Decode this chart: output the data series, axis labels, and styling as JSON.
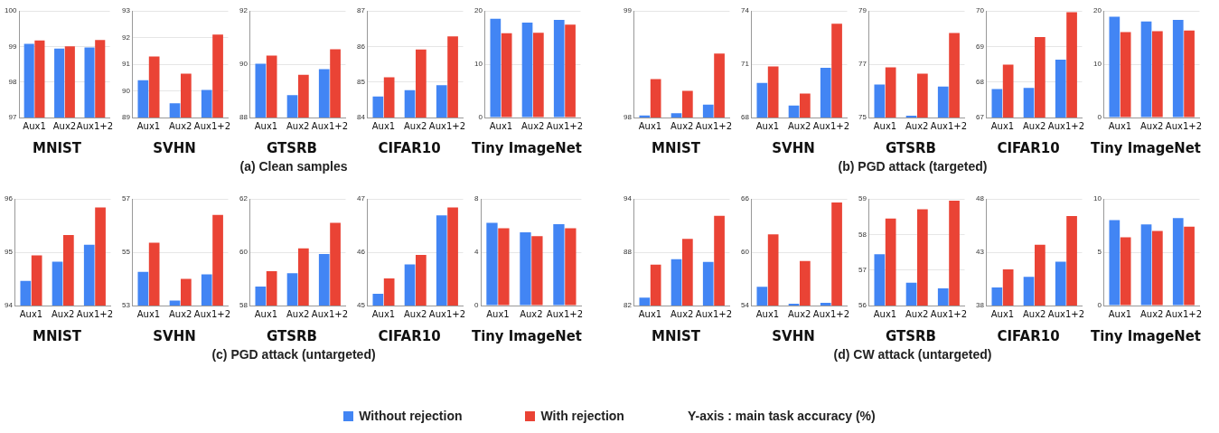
{
  "chart_data": [
    {
      "type": "bar",
      "title": "MNIST",
      "categories": [
        "Aux1",
        "Aux2",
        "Aux1+2"
      ],
      "ylim": [
        97,
        100
      ],
      "yticks": [
        97,
        98,
        99,
        100
      ],
      "grid": "y",
      "legend": "bottom",
      "series": [
        {
          "name": "Without rejection",
          "color": "#4285f4",
          "values": [
            99.07,
            98.94,
            98.97
          ]
        },
        {
          "name": "With rejection",
          "color": "#ea4335",
          "values": [
            99.17,
            99.0,
            99.18
          ]
        }
      ]
    },
    {
      "type": "bar",
      "title": "SVHN",
      "categories": [
        "Aux1",
        "Aux2",
        "Aux1+2"
      ],
      "ylim": [
        89,
        93
      ],
      "yticks": [
        89,
        90,
        91,
        92,
        93
      ],
      "grid": "y",
      "series": [
        {
          "color": "#4285f4",
          "values": [
            90.4,
            89.53,
            90.03
          ]
        },
        {
          "color": "#ea4335",
          "values": [
            91.29,
            90.64,
            92.11
          ]
        }
      ]
    },
    {
      "type": "bar",
      "title": "GTSRB",
      "categories": [
        "Aux1",
        "Aux2",
        "Aux1+2"
      ],
      "ylim": [
        88,
        92
      ],
      "yticks": [
        88,
        90,
        92
      ],
      "grid": "y",
      "annotations": [
        "(a) Clean samples"
      ],
      "series": [
        {
          "color": "#4285f4",
          "values": [
            90.02,
            88.84,
            89.81
          ]
        },
        {
          "color": "#ea4335",
          "values": [
            90.32,
            89.6,
            90.56
          ]
        }
      ]
    },
    {
      "type": "bar",
      "title": "CIFAR10",
      "categories": [
        "Aux1",
        "Aux2",
        "Aux1+2"
      ],
      "ylim": [
        84,
        87
      ],
      "yticks": [
        84,
        85,
        86,
        87
      ],
      "grid": "y",
      "series": [
        {
          "color": "#4285f4",
          "values": [
            84.59,
            84.77,
            84.91
          ]
        },
        {
          "color": "#ea4335",
          "values": [
            85.13,
            85.91,
            86.28
          ]
        }
      ]
    },
    {
      "type": "bar",
      "title": "Tiny ImageNet",
      "categories": [
        "Aux1",
        "Aux2",
        "Aux1+2"
      ],
      "ylim": [
        0,
        20
      ],
      "yticks": [
        0,
        10,
        20
      ],
      "grid": "y",
      "series": [
        {
          "color": "#4285f4",
          "values": [
            18.5,
            17.8,
            18.3
          ]
        },
        {
          "color": "#ea4335",
          "values": [
            15.8,
            15.9,
            17.4
          ]
        }
      ]
    },
    {
      "type": "bar",
      "title": "MNIST",
      "categories": [
        "Aux1",
        "Aux2",
        "Aux1+2"
      ],
      "ylim": [
        98,
        99
      ],
      "yticks": [
        98,
        99
      ],
      "grid": "y",
      "series": [
        {
          "color": "#4285f4",
          "values": [
            98.02,
            98.04,
            98.12
          ]
        },
        {
          "color": "#ea4335",
          "values": [
            98.36,
            98.25,
            98.6
          ]
        }
      ]
    },
    {
      "type": "bar",
      "title": "SVHN",
      "categories": [
        "Aux1",
        "Aux2",
        "Aux1+2"
      ],
      "ylim": [
        68,
        74
      ],
      "yticks": [
        68,
        71,
        74
      ],
      "grid": "y",
      "series": [
        {
          "color": "#4285f4",
          "values": [
            69.94,
            68.68,
            70.8
          ]
        },
        {
          "color": "#ea4335",
          "values": [
            70.87,
            69.35,
            73.28
          ]
        }
      ]
    },
    {
      "type": "bar",
      "title": "GTSRB",
      "categories": [
        "Aux1",
        "Aux2",
        "Aux1+2"
      ],
      "ylim": [
        75,
        79
      ],
      "yticks": [
        75,
        77,
        79
      ],
      "grid": "y",
      "annotations": [
        "(b) PGD attack (targeted)"
      ],
      "series": [
        {
          "color": "#4285f4",
          "values": [
            76.24,
            75.07,
            76.16
          ]
        },
        {
          "color": "#ea4335",
          "values": [
            76.88,
            76.64,
            78.17
          ]
        }
      ]
    },
    {
      "type": "bar",
      "title": "CIFAR10",
      "categories": [
        "Aux1",
        "Aux2",
        "Aux1+2"
      ],
      "ylim": [
        67,
        70
      ],
      "yticks": [
        67,
        68,
        69,
        70
      ],
      "grid": "y",
      "series": [
        {
          "color": "#4285f4",
          "values": [
            67.8,
            67.83,
            68.63
          ]
        },
        {
          "color": "#ea4335",
          "values": [
            68.49,
            69.26,
            69.96
          ]
        }
      ]
    },
    {
      "type": "bar",
      "title": "Tiny ImageNet",
      "categories": [
        "Aux1",
        "Aux2",
        "Aux1+2"
      ],
      "ylim": [
        0,
        20
      ],
      "yticks": [
        0,
        10,
        20
      ],
      "grid": "y",
      "series": [
        {
          "color": "#4285f4",
          "values": [
            18.9,
            18.0,
            18.3
          ]
        },
        {
          "color": "#ea4335",
          "values": [
            16.0,
            16.2,
            16.3
          ]
        }
      ]
    },
    {
      "type": "bar",
      "title": "MNIST",
      "categories": [
        "Aux1",
        "Aux2",
        "Aux1+2"
      ],
      "ylim": [
        94,
        96
      ],
      "yticks": [
        94,
        95,
        96
      ],
      "grid": "y",
      "series": [
        {
          "color": "#4285f4",
          "values": [
            94.46,
            94.82,
            95.14
          ]
        },
        {
          "color": "#ea4335",
          "values": [
            94.94,
            95.32,
            95.84
          ]
        }
      ]
    },
    {
      "type": "bar",
      "title": "SVHN",
      "categories": [
        "Aux1",
        "Aux2",
        "Aux1+2"
      ],
      "ylim": [
        53,
        57
      ],
      "yticks": [
        53,
        55,
        57
      ],
      "grid": "y",
      "series": [
        {
          "color": "#4285f4",
          "values": [
            54.26,
            53.19,
            54.17
          ]
        },
        {
          "color": "#ea4335",
          "values": [
            55.36,
            54.0,
            56.4
          ]
        }
      ]
    },
    {
      "type": "bar",
      "title": "GTSRB",
      "categories": [
        "Aux1",
        "Aux2",
        "Aux1+2"
      ],
      "ylim": [
        58,
        62
      ],
      "yticks": [
        58,
        60,
        62
      ],
      "grid": "y",
      "annotations": [
        "(c) PGD attack (untargeted)"
      ],
      "series": [
        {
          "color": "#4285f4",
          "values": [
            58.71,
            59.21,
            59.93
          ]
        },
        {
          "color": "#ea4335",
          "values": [
            59.29,
            60.14,
            61.1
          ]
        }
      ]
    },
    {
      "type": "bar",
      "title": "CIFAR10",
      "categories": [
        "Aux1",
        "Aux2",
        "Aux1+2"
      ],
      "ylim": [
        45,
        47
      ],
      "yticks": [
        45,
        46,
        47
      ],
      "grid": "y",
      "series": [
        {
          "color": "#4285f4",
          "values": [
            45.22,
            45.77,
            46.69
          ]
        },
        {
          "color": "#ea4335",
          "values": [
            45.51,
            45.95,
            46.84
          ]
        }
      ]
    },
    {
      "type": "bar",
      "title": "Tiny ImageNet",
      "categories": [
        "Aux1",
        "Aux2",
        "Aux1+2"
      ],
      "ylim": [
        0,
        8
      ],
      "yticks": [
        0,
        4,
        8
      ],
      "grid": "y",
      "series": [
        {
          "color": "#4285f4",
          "values": [
            6.2,
            5.5,
            6.1
          ]
        },
        {
          "color": "#ea4335",
          "values": [
            5.8,
            5.2,
            5.8
          ]
        }
      ]
    },
    {
      "type": "bar",
      "title": "MNIST",
      "categories": [
        "Aux1",
        "Aux2",
        "Aux1+2"
      ],
      "ylim": [
        82,
        94
      ],
      "yticks": [
        82,
        88,
        94
      ],
      "grid": "y",
      "series": [
        {
          "color": "#4285f4",
          "values": [
            82.9,
            87.2,
            86.9
          ]
        },
        {
          "color": "#ea4335",
          "values": [
            86.6,
            89.5,
            92.1
          ]
        }
      ]
    },
    {
      "type": "bar",
      "title": "SVHN",
      "categories": [
        "Aux1",
        "Aux2",
        "Aux1+2"
      ],
      "ylim": [
        54,
        66
      ],
      "yticks": [
        54,
        60,
        66
      ],
      "grid": "y",
      "series": [
        {
          "color": "#4285f4",
          "values": [
            56.1,
            54.2,
            54.3
          ]
        },
        {
          "color": "#ea4335",
          "values": [
            62.0,
            59.0,
            65.6
          ]
        }
      ]
    },
    {
      "type": "bar",
      "title": "GTSRB",
      "categories": [
        "Aux1",
        "Aux2",
        "Aux1+2"
      ],
      "ylim": [
        56,
        59
      ],
      "yticks": [
        56,
        57,
        58,
        59
      ],
      "grid": "y",
      "annotations": [
        "(d) CW attack (untargeted)"
      ],
      "series": [
        {
          "color": "#4285f4",
          "values": [
            57.44,
            56.64,
            56.48
          ]
        },
        {
          "color": "#ea4335",
          "values": [
            58.45,
            58.71,
            58.95
          ]
        }
      ]
    },
    {
      "type": "bar",
      "title": "CIFAR10",
      "categories": [
        "Aux1",
        "Aux2",
        "Aux1+2"
      ],
      "ylim": [
        38,
        48
      ],
      "yticks": [
        38,
        43,
        48
      ],
      "grid": "y",
      "series": [
        {
          "color": "#4285f4",
          "values": [
            39.7,
            40.7,
            42.1
          ]
        },
        {
          "color": "#ea4335",
          "values": [
            41.4,
            43.7,
            46.4
          ]
        }
      ]
    },
    {
      "type": "bar",
      "title": "Tiny ImageNet",
      "categories": [
        "Aux1",
        "Aux2",
        "Aux1+2"
      ],
      "ylim": [
        0,
        10
      ],
      "yticks": [
        0,
        5,
        10
      ],
      "grid": "y",
      "annotations": [
        "Y-axis : main task accuracy (%)"
      ],
      "series": [
        {
          "color": "#4285f4",
          "values": [
            8.0,
            7.6,
            8.2
          ]
        },
        {
          "color": "#ea4335",
          "values": [
            6.4,
            7.0,
            7.4
          ]
        }
      ]
    }
  ]
}
